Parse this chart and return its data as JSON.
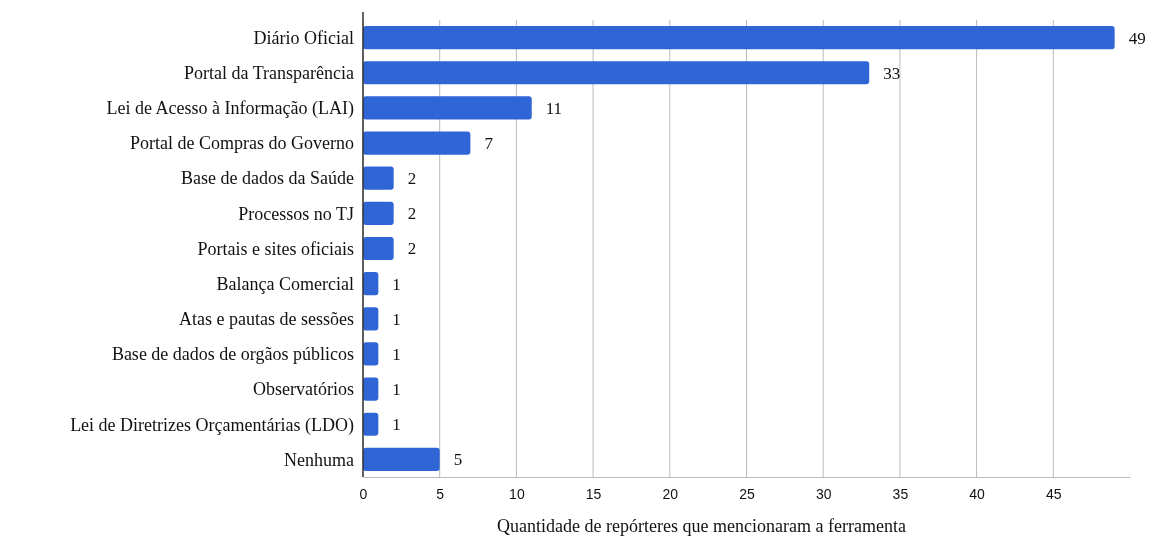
{
  "chart_data": {
    "type": "bar",
    "orientation": "horizontal",
    "xlabel": "Quantidade de repórteres que mencionaram a ferramenta",
    "categories": [
      "Diário Oficial",
      "Portal da Transparência",
      "Lei de Acesso à Informação (LAI)",
      "Portal de Compras do Governo",
      "Base de dados da Saúde",
      "Processos no TJ",
      "Portais e sites oficiais",
      "Balança Comercial",
      "Atas e pautas de sessões",
      "Base de dados de orgãos públicos",
      "Observatórios",
      "Lei de Diretrizes Orçamentárias (LDO)",
      "Nenhuma"
    ],
    "values": [
      49,
      33,
      11,
      7,
      2,
      2,
      2,
      1,
      1,
      1,
      1,
      1,
      5
    ],
    "color": "#3065d6",
    "xlim": [
      0,
      50
    ],
    "xticks": [
      0,
      5,
      10,
      15,
      20,
      25,
      30,
      35,
      40,
      45
    ],
    "grid": "x",
    "data_labels": true
  }
}
